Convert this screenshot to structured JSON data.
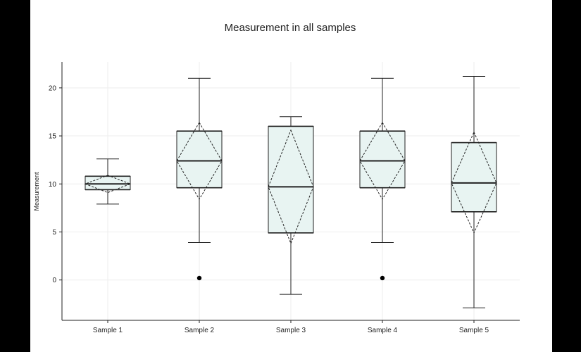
{
  "chart_data": {
    "type": "box",
    "title": "Measurement in all samples",
    "xlabel": "",
    "ylabel": "Measurement",
    "ylim": [
      -4.2,
      22.7
    ],
    "yticks": [
      0,
      5,
      10,
      15,
      20
    ],
    "grid": true,
    "categories": [
      "Sample 1",
      "Sample 2",
      "Sample 3",
      "Sample 4",
      "Sample 5"
    ],
    "boxes": [
      {
        "name": "Sample 1",
        "whisker_low": 7.9,
        "q1": 9.4,
        "median": 10.0,
        "mean": 10.0,
        "q3": 10.8,
        "whisker_high": 12.6,
        "sd_low": 9.1,
        "sd_high": 10.9,
        "outliers": []
      },
      {
        "name": "Sample 2",
        "whisker_low": 3.9,
        "q1": 9.6,
        "median": 12.4,
        "mean": 12.4,
        "q3": 15.5,
        "whisker_high": 21.0,
        "sd_low": 8.4,
        "sd_high": 16.4,
        "outliers": [
          0.2
        ]
      },
      {
        "name": "Sample 3",
        "whisker_low": -1.5,
        "q1": 4.9,
        "median": 9.7,
        "mean": 9.7,
        "q3": 16.0,
        "whisker_high": 17.0,
        "sd_low": 3.8,
        "sd_high": 15.6,
        "outliers": []
      },
      {
        "name": "Sample 4",
        "whisker_low": 3.9,
        "q1": 9.6,
        "median": 12.4,
        "mean": 12.4,
        "q3": 15.5,
        "whisker_high": 21.0,
        "sd_low": 8.4,
        "sd_high": 16.4,
        "outliers": [
          0.2
        ]
      },
      {
        "name": "Sample 5",
        "whisker_low": -2.9,
        "q1": 7.1,
        "median": 10.1,
        "mean": 10.1,
        "q3": 14.3,
        "whisker_high": 21.2,
        "sd_low": 4.9,
        "sd_high": 15.4,
        "outliers": []
      }
    ],
    "box_fill": "#e8f4f2",
    "line_color": "#222222",
    "grid_color": "#eeeeee"
  }
}
